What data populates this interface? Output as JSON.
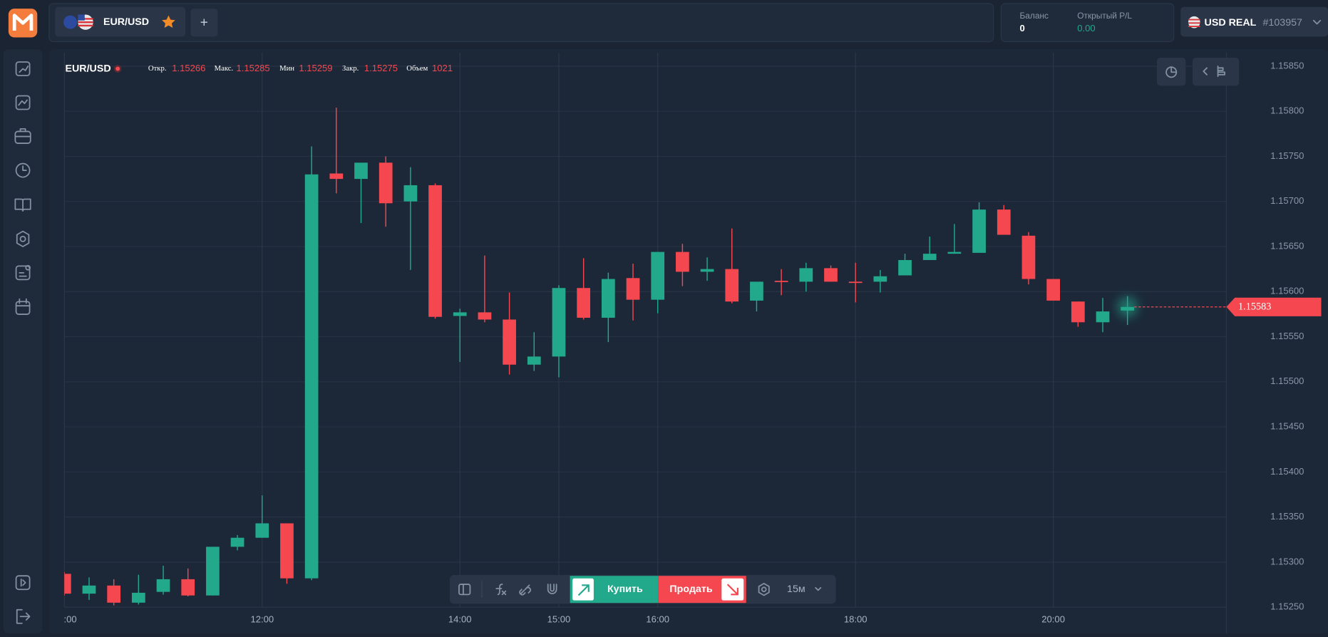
{
  "header": {
    "tab": {
      "symbol": "EUR/USD",
      "add": "+"
    },
    "balance": {
      "label": "Баланс",
      "value": "0"
    },
    "pnl": {
      "label": "Открытый P/L",
      "value": "0.00"
    },
    "account": {
      "name": "USD REAL",
      "id": "#103957"
    }
  },
  "chart_header": {
    "ohlc": [
      {
        "label": "Откр.",
        "value": "1.15266"
      },
      {
        "label": "Макс.",
        "value": "1.15285"
      },
      {
        "label": "Мин",
        "value": "1.15259"
      },
      {
        "label": "Закр.",
        "value": "1.15275"
      },
      {
        "label": "Объем",
        "value": "1021"
      }
    ]
  },
  "toolbar": {
    "buy": "Купить",
    "sell": "Продать",
    "timeframe": "15м"
  },
  "chart_data": {
    "type": "candlestick",
    "title": "EUR/USD",
    "x": [
      10,
      10.25,
      10.5,
      10.75,
      11,
      11.25,
      11.5,
      11.75,
      12,
      12.25,
      12.5,
      12.75,
      13,
      13.25,
      13.5,
      13.75,
      14,
      14.25,
      14.5,
      14.75,
      15,
      15.25,
      15.5,
      15.75,
      16,
      16.25,
      16.5,
      16.75,
      17,
      17.25,
      17.5,
      17.75,
      18,
      18.25,
      18.5,
      18.75,
      19,
      19.25,
      19.5,
      19.75,
      20,
      20.25,
      20.5,
      20.75
    ],
    "open": [
      1.15287,
      1.15265,
      1.15274,
      1.15255,
      1.15267,
      1.15281,
      1.15263,
      1.15317,
      1.15327,
      1.15343,
      1.15282,
      1.15731,
      1.15725,
      1.15743,
      1.157,
      1.15718,
      1.15573,
      1.15577,
      1.15569,
      1.15519,
      1.15528,
      1.15604,
      1.15571,
      1.15615,
      1.15591,
      1.15644,
      1.15622,
      1.15625,
      1.1559,
      1.15612,
      1.15611,
      1.15626,
      1.15611,
      1.15611,
      1.15618,
      1.15635,
      1.15642,
      1.15643,
      1.15691,
      1.15662,
      1.15614,
      1.15589,
      1.15566,
      1.15579
    ],
    "high": [
      1.15289,
      1.15283,
      1.15281,
      1.15286,
      1.15296,
      1.15293,
      1.15317,
      1.1533,
      1.15374,
      1.15343,
      1.15761,
      1.15804,
      1.15743,
      1.1575,
      1.15738,
      1.1572,
      1.15581,
      1.1564,
      1.15599,
      1.15555,
      1.15607,
      1.15637,
      1.15621,
      1.15631,
      1.15644,
      1.15653,
      1.15638,
      1.1567,
      1.15611,
      1.15625,
      1.15632,
      1.15629,
      1.15632,
      1.15624,
      1.15642,
      1.15661,
      1.15675,
      1.15699,
      1.15696,
      1.15666,
      1.15614,
      1.15589,
      1.15593,
      1.15595
    ],
    "low": [
      1.15263,
      1.15258,
      1.15252,
      1.15253,
      1.15264,
      1.15262,
      1.15263,
      1.15313,
      1.15327,
      1.15276,
      1.1528,
      1.15709,
      1.15676,
      1.15672,
      1.15624,
      1.1557,
      1.15522,
      1.15566,
      1.15508,
      1.15512,
      1.15505,
      1.15569,
      1.15544,
      1.15568,
      1.15576,
      1.15606,
      1.15612,
      1.15587,
      1.15578,
      1.15596,
      1.156,
      1.15611,
      1.15588,
      1.15599,
      1.15618,
      1.15635,
      1.15642,
      1.15643,
      1.15663,
      1.15608,
      1.1559,
      1.15561,
      1.15555,
      1.15563
    ],
    "close": [
      1.15265,
      1.15274,
      1.15255,
      1.15266,
      1.15281,
      1.15263,
      1.15317,
      1.15327,
      1.15343,
      1.15282,
      1.1573,
      1.15725,
      1.15743,
      1.15698,
      1.15718,
      1.15572,
      1.15577,
      1.15569,
      1.15519,
      1.15528,
      1.15604,
      1.15571,
      1.15614,
      1.15591,
      1.15644,
      1.15622,
      1.15625,
      1.15589,
      1.15611,
      1.15611,
      1.15626,
      1.15611,
      1.1561,
      1.15617,
      1.15635,
      1.15642,
      1.15644,
      1.15691,
      1.15663,
      1.15614,
      1.1559,
      1.15566,
      1.15578,
      1.15583
    ],
    "up_color": "#22a88b",
    "down_color": "#f5474f",
    "current_price": {
      "value": 1.15583,
      "label": "1.15583"
    },
    "xlim": [
      10,
      21.75
    ],
    "ylim": [
      1.1525,
      1.15865
    ],
    "xticks": [
      {
        "value": 10,
        "label": ":00"
      },
      {
        "value": 12,
        "label": "12:00"
      },
      {
        "value": 14,
        "label": "14:00"
      },
      {
        "value": 15,
        "label": "15:00"
      },
      {
        "value": 16,
        "label": "16:00"
      },
      {
        "value": 18,
        "label": "18:00"
      },
      {
        "value": 20,
        "label": "20:00"
      }
    ],
    "yticks": [
      {
        "value": 1.1525,
        "label": "1.15250"
      },
      {
        "value": 1.153,
        "label": "1.15300"
      },
      {
        "value": 1.1535,
        "label": "1.15350"
      },
      {
        "value": 1.154,
        "label": "1.15400"
      },
      {
        "value": 1.1545,
        "label": "1.15450"
      },
      {
        "value": 1.155,
        "label": "1.15500"
      },
      {
        "value": 1.1555,
        "label": "1.15550"
      },
      {
        "value": 1.156,
        "label": "1.15600"
      },
      {
        "value": 1.1565,
        "label": "1.15650"
      },
      {
        "value": 1.157,
        "label": "1.15700"
      },
      {
        "value": 1.1575,
        "label": "1.15750"
      },
      {
        "value": 1.158,
        "label": "1.15800"
      },
      {
        "value": 1.1585,
        "label": "1.15850"
      }
    ],
    "grid": true
  }
}
